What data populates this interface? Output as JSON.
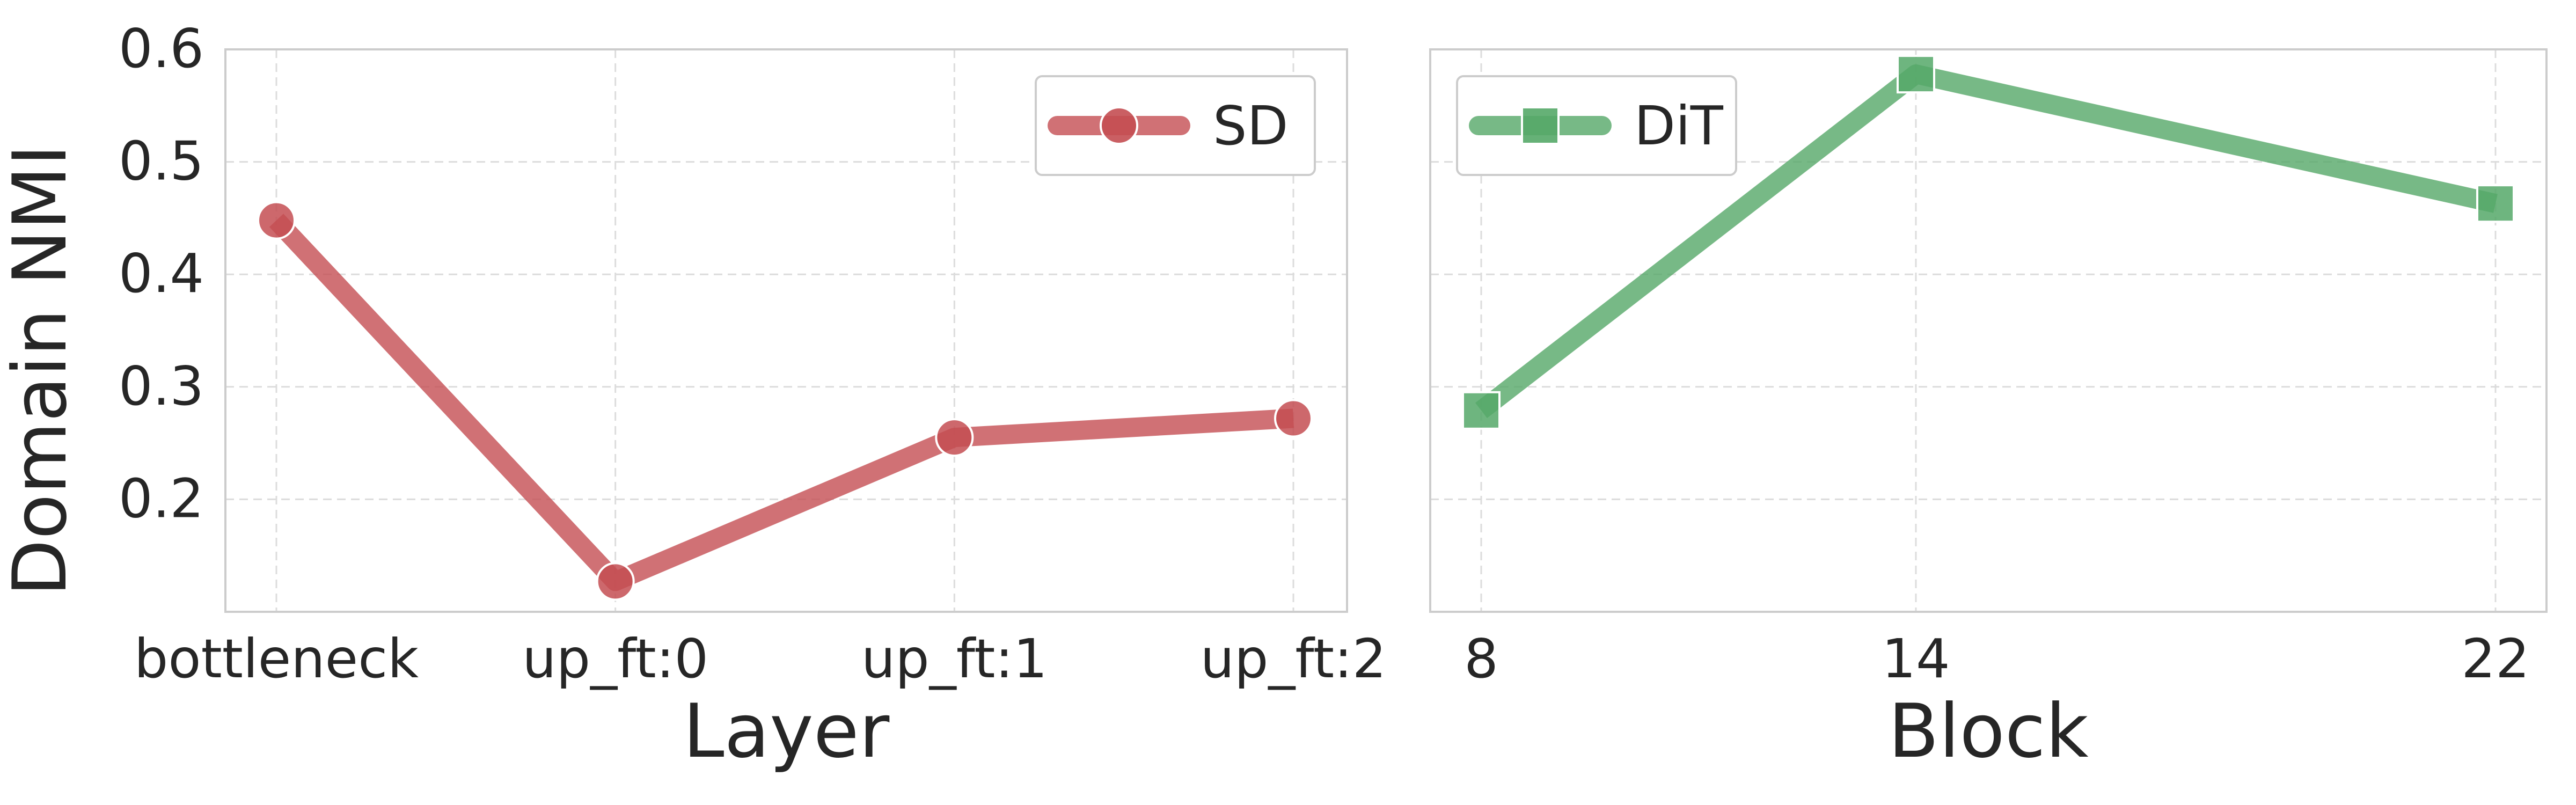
{
  "chart_data": [
    {
      "type": "line",
      "xlabel": "Layer",
      "ylabel": "Domain NMI",
      "categories": [
        "bottleneck",
        "up_ft:0",
        "up_ft:1",
        "up_ft:2"
      ],
      "yticks": [
        "0.2",
        "0.3",
        "0.4",
        "0.5",
        "0.6"
      ],
      "ylim": [
        0.1,
        0.6
      ],
      "grid": true,
      "legend_position": "top-right",
      "series": [
        {
          "name": "SD",
          "marker": "circle",
          "color": "#c44e52",
          "values": [
            0.448,
            0.127,
            0.255,
            0.272
          ]
        }
      ]
    },
    {
      "type": "line",
      "xlabel": "Block",
      "ylabel": "",
      "categories": [
        "8",
        "14",
        "22"
      ],
      "x": [
        8,
        14,
        22
      ],
      "ylim": [
        0.1,
        0.6
      ],
      "grid": true,
      "legend_position": "top-left",
      "series": [
        {
          "name": "DiT",
          "marker": "square",
          "color": "#55a868",
          "values": [
            0.279,
            0.578,
            0.463
          ]
        }
      ]
    }
  ]
}
